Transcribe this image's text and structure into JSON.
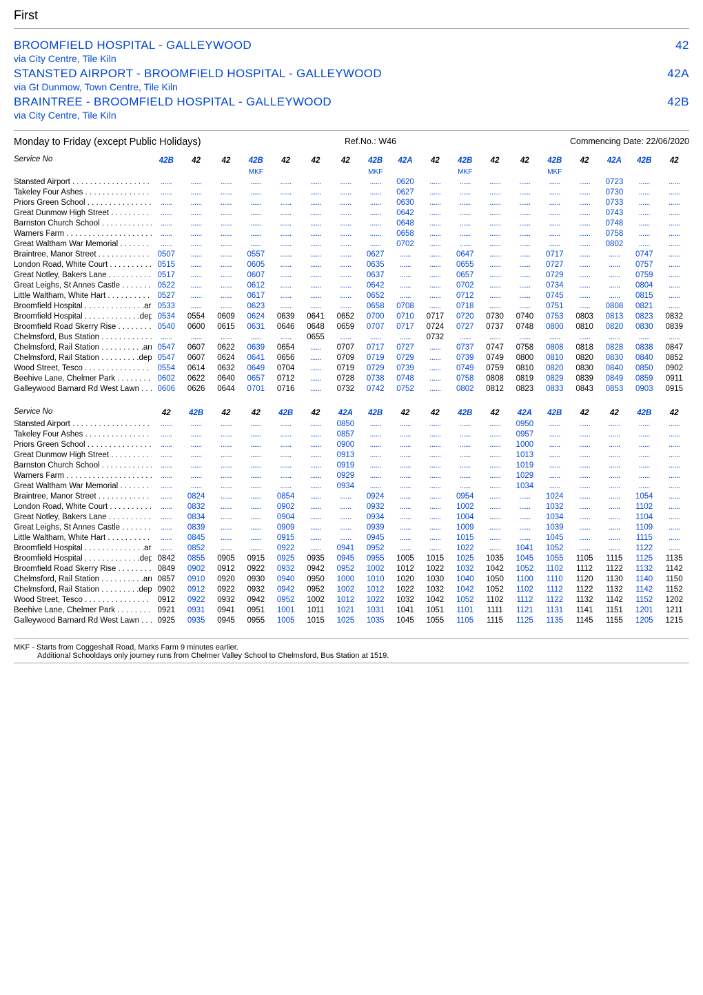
{
  "operator": "First",
  "routes": [
    {
      "title": "BROOMFIELD HOSPITAL - GALLEYWOOD",
      "num": "42",
      "via": "via City Centre, Tile Kiln"
    },
    {
      "title": "STANSTED AIRPORT - BROOMFIELD HOSPITAL - GALLEYWOOD",
      "num": "42A",
      "via": "via Gt Dunmow, Town Centre, Tile Kiln"
    },
    {
      "title": "BRAINTREE - BROOMFIELD HOSPITAL - GALLEYWOOD",
      "num": "42B",
      "via": "via City Centre, Tile Kiln"
    }
  ],
  "days_label": "Monday to Friday (except Public Holidays)",
  "ref": "Ref.No.: W46",
  "commencing": "Commencing Date: 22/06/2020",
  "table1": {
    "headers": [
      "42B",
      "42",
      "42",
      "42B",
      "42",
      "42",
      "42",
      "42B",
      "42A",
      "42",
      "42B",
      "42",
      "42",
      "42B",
      "42",
      "42A",
      "42B",
      "42"
    ],
    "mkf_cols": [
      3,
      7,
      10,
      13
    ],
    "stops": [
      "Stansted Airport . . . . . . . . . . . . . . . . . . .",
      "Takeley Four Ashes  . . . . . . . . . . . . . . .",
      "Priors Green School . . . . . . . . . . . . . . . .",
      "Great Dunmow High Street . . . . . . . . . .",
      "Barnston Church School . . . . . . . . . . . .",
      "Warners Farm   . . . . . . . . . . . . . . . . . . . .",
      "Great Waltham War Memorial  . . . . . . .",
      "Braintree, Manor Street  . . . . . . . . . . . .",
      "London Road, White Court . . . . . . . . . .",
      "Great Notley, Bakers Lane  . . . . . . . . . .",
      "Great Leighs, St Annes Castle . . . . . . .",
      "Little Waltham, White Hart . . . . . . . . . .",
      "Broomfield Hospital . . . . . . . . . . . . . .arr",
      "Broomfield Hospital . . . . . . . . . . . . .dep",
      "Broomfield Road Skerry Rise . . . . . . . .",
      "Chelmsford, Bus Station . . . . . . . . . . . .",
      "Chelmsford, Rail Station . . . . . . . . . .arr",
      "Chelmsford, Rail Station . . . . . . . . .dep",
      "Wood Street, Tesco  . . . . . . . . . . . . . . . .",
      "Beehive Lane, Chelmer Park  . . . . . . . .",
      "Galleywood Barnard Rd West Lawn . . ."
    ],
    "rows": [
      [
        "",
        "",
        "",
        "",
        "",
        "",
        "",
        "",
        "0620",
        "",
        "",
        "",
        "",
        "",
        "",
        "0723",
        "",
        ""
      ],
      [
        "",
        "",
        "",
        "",
        "",
        "",
        "",
        "",
        "0627",
        "",
        "",
        "",
        "",
        "",
        "",
        "0730",
        "",
        ""
      ],
      [
        "",
        "",
        "",
        "",
        "",
        "",
        "",
        "",
        "0630",
        "",
        "",
        "",
        "",
        "",
        "",
        "0733",
        "",
        ""
      ],
      [
        "",
        "",
        "",
        "",
        "",
        "",
        "",
        "",
        "0642",
        "",
        "",
        "",
        "",
        "",
        "",
        "0743",
        "",
        ""
      ],
      [
        "",
        "",
        "",
        "",
        "",
        "",
        "",
        "",
        "0648",
        "",
        "",
        "",
        "",
        "",
        "",
        "0748",
        "",
        ""
      ],
      [
        "",
        "",
        "",
        "",
        "",
        "",
        "",
        "",
        "0658",
        "",
        "",
        "",
        "",
        "",
        "",
        "0758",
        "",
        ""
      ],
      [
        "",
        "",
        "",
        "",
        "",
        "",
        "",
        "",
        "0702",
        "",
        "",
        "",
        "",
        "",
        "",
        "0802",
        "",
        ""
      ],
      [
        "0507",
        "",
        "",
        "0557",
        "",
        "",
        "",
        "0627",
        "",
        "",
        "0647",
        "",
        "",
        "0717",
        "",
        "",
        "0747",
        ""
      ],
      [
        "0515",
        "",
        "",
        "0605",
        "",
        "",
        "",
        "0635",
        "",
        "",
        "0655",
        "",
        "",
        "0727",
        "",
        "",
        "0757",
        ""
      ],
      [
        "0517",
        "",
        "",
        "0607",
        "",
        "",
        "",
        "0637",
        "",
        "",
        "0657",
        "",
        "",
        "0729",
        "",
        "",
        "0759",
        ""
      ],
      [
        "0522",
        "",
        "",
        "0612",
        "",
        "",
        "",
        "0642",
        "",
        "",
        "0702",
        "",
        "",
        "0734",
        "",
        "",
        "0804",
        ""
      ],
      [
        "0527",
        "",
        "",
        "0617",
        "",
        "",
        "",
        "0652",
        "",
        "",
        "0712",
        "",
        "",
        "0745",
        "",
        "",
        "0815",
        ""
      ],
      [
        "0533",
        "",
        "",
        "0623",
        "",
        "",
        "",
        "0658",
        "0708",
        "",
        "0718",
        "",
        "",
        "0751",
        "",
        "0808",
        "0821",
        ""
      ],
      [
        "0534",
        "0554",
        "0609",
        "0624",
        "0639",
        "0641",
        "0652",
        "0700",
        "0710",
        "0717",
        "0720",
        "0730",
        "0740",
        "0753",
        "0803",
        "0813",
        "0823",
        "0832"
      ],
      [
        "0540",
        "0600",
        "0615",
        "0631",
        "0646",
        "0648",
        "0659",
        "0707",
        "0717",
        "0724",
        "0727",
        "0737",
        "0748",
        "0800",
        "0810",
        "0820",
        "0830",
        "0839"
      ],
      [
        "",
        "",
        "",
        "",
        "",
        "0655",
        "",
        "",
        "",
        "0732",
        "",
        "",
        "",
        "",
        "",
        "",
        "",
        ""
      ],
      [
        "0547",
        "0607",
        "0622",
        "0639",
        "0654",
        "",
        "0707",
        "0717",
        "0727",
        "",
        "0737",
        "0747",
        "0758",
        "0808",
        "0818",
        "0828",
        "0838",
        "0847"
      ],
      [
        "0547",
        "0607",
        "0624",
        "0641",
        "0656",
        "",
        "0709",
        "0719",
        "0729",
        "",
        "0739",
        "0749",
        "0800",
        "0810",
        "0820",
        "0830",
        "0840",
        "0852"
      ],
      [
        "0554",
        "0614",
        "0632",
        "0649",
        "0704",
        "",
        "0719",
        "0729",
        "0739",
        "",
        "0749",
        "0759",
        "0810",
        "0820",
        "0830",
        "0840",
        "0850",
        "0902"
      ],
      [
        "0602",
        "0622",
        "0640",
        "0657",
        "0712",
        "",
        "0728",
        "0738",
        "0748",
        "",
        "0758",
        "0808",
        "0819",
        "0829",
        "0839",
        "0849",
        "0859",
        "0911"
      ],
      [
        "0606",
        "0626",
        "0644",
        "0701",
        "0716",
        "",
        "0732",
        "0742",
        "0752",
        "",
        "0802",
        "0812",
        "0823",
        "0833",
        "0843",
        "0853",
        "0903",
        "0915"
      ]
    ]
  },
  "table2": {
    "headers": [
      "42",
      "42B",
      "42",
      "42",
      "42B",
      "42",
      "42A",
      "42B",
      "42",
      "42",
      "42B",
      "42",
      "42A",
      "42B",
      "42",
      "42",
      "42B",
      "42"
    ],
    "mkf_cols": [],
    "stops": [
      "Stansted Airport  . . . . . . . . . . . . . . . . . .",
      "Takeley Four Ashes   . . . . . . . . . . . . . . .",
      "Priors Green School . . . . . . . . . . . . . . . .",
      "Great Dunmow High Street . . . . . . . . . .",
      "Barnston Church School . . . . . . . . . . . .",
      "Warners Farm   . . . . . . . . . . . . . . . . . . . .",
      "Great Waltham War Memorial  . . . . . . .",
      "Braintree, Manor Street  . . . . . . . . . . . .",
      "London Road, White Court . . . . . . . . . .",
      "Great Notley, Bakers Lane  . . . . . . . . . .",
      "Great Leighs, St Annes Castle . . . . . . .",
      "Little Waltham, White Hart . . . . . . . . . .",
      "Broomfield Hospital . . . . . . . . . . . . . .arr",
      "Broomfield Hospital . . . . . . . . . . . . .dep",
      "Broomfield Road Skerry Rise . . . . . . . .",
      "Chelmsford, Rail Station . . . . . . . . . .arr",
      "Chelmsford, Rail Station . . . . . . . . .dep",
      "Wood Street, Tesco  . . . . . . . . . . . . . . . .",
      "Beehive Lane, Chelmer Park  . . . . . . . .",
      "Galleywood Barnard Rd West Lawn . . ."
    ],
    "rows": [
      [
        "",
        "",
        "",
        "",
        "",
        "",
        "0850",
        "",
        "",
        "",
        "",
        "",
        "0950",
        "",
        "",
        "",
        "",
        ""
      ],
      [
        "",
        "",
        "",
        "",
        "",
        "",
        "0857",
        "",
        "",
        "",
        "",
        "",
        "0957",
        "",
        "",
        "",
        "",
        ""
      ],
      [
        "",
        "",
        "",
        "",
        "",
        "",
        "0900",
        "",
        "",
        "",
        "",
        "",
        "1000",
        "",
        "",
        "",
        "",
        ""
      ],
      [
        "",
        "",
        "",
        "",
        "",
        "",
        "0913",
        "",
        "",
        "",
        "",
        "",
        "1013",
        "",
        "",
        "",
        "",
        ""
      ],
      [
        "",
        "",
        "",
        "",
        "",
        "",
        "0919",
        "",
        "",
        "",
        "",
        "",
        "1019",
        "",
        "",
        "",
        "",
        ""
      ],
      [
        "",
        "",
        "",
        "",
        "",
        "",
        "0929",
        "",
        "",
        "",
        "",
        "",
        "1029",
        "",
        "",
        "",
        "",
        ""
      ],
      [
        "",
        "",
        "",
        "",
        "",
        "",
        "0934",
        "",
        "",
        "",
        "",
        "",
        "1034",
        "",
        "",
        "",
        "",
        ""
      ],
      [
        "",
        "0824",
        "",
        "",
        "0854",
        "",
        "",
        "0924",
        "",
        "",
        "0954",
        "",
        "",
        "1024",
        "",
        "",
        "1054",
        ""
      ],
      [
        "",
        "0832",
        "",
        "",
        "0902",
        "",
        "",
        "0932",
        "",
        "",
        "1002",
        "",
        "",
        "1032",
        "",
        "",
        "1102",
        ""
      ],
      [
        "",
        "0834",
        "",
        "",
        "0904",
        "",
        "",
        "0934",
        "",
        "",
        "1004",
        "",
        "",
        "1034",
        "",
        "",
        "1104",
        ""
      ],
      [
        "",
        "0839",
        "",
        "",
        "0909",
        "",
        "",
        "0939",
        "",
        "",
        "1009",
        "",
        "",
        "1039",
        "",
        "",
        "1109",
        ""
      ],
      [
        "",
        "0845",
        "",
        "",
        "0915",
        "",
        "",
        "0945",
        "",
        "",
        "1015",
        "",
        "",
        "1045",
        "",
        "",
        "1115",
        ""
      ],
      [
        "",
        "0852",
        "",
        "",
        "0922",
        "",
        "0941",
        "0952",
        "",
        "",
        "1022",
        "",
        "1041",
        "1052",
        "",
        "",
        "1122",
        ""
      ],
      [
        "0842",
        "0855",
        "0905",
        "0915",
        "0925",
        "0935",
        "0945",
        "0955",
        "1005",
        "1015",
        "1025",
        "1035",
        "1045",
        "1055",
        "1105",
        "1115",
        "1125",
        "1135"
      ],
      [
        "0849",
        "0902",
        "0912",
        "0922",
        "0932",
        "0942",
        "0952",
        "1002",
        "1012",
        "1022",
        "1032",
        "1042",
        "1052",
        "1102",
        "1112",
        "1122",
        "1132",
        "1142"
      ],
      [
        "0857",
        "0910",
        "0920",
        "0930",
        "0940",
        "0950",
        "1000",
        "1010",
        "1020",
        "1030",
        "1040",
        "1050",
        "1100",
        "1110",
        "1120",
        "1130",
        "1140",
        "1150"
      ],
      [
        "0902",
        "0912",
        "0922",
        "0932",
        "0942",
        "0952",
        "1002",
        "1012",
        "1022",
        "1032",
        "1042",
        "1052",
        "1102",
        "1112",
        "1122",
        "1132",
        "1142",
        "1152"
      ],
      [
        "0912",
        "0922",
        "0932",
        "0942",
        "0952",
        "1002",
        "1012",
        "1022",
        "1032",
        "1042",
        "1052",
        "1102",
        "1112",
        "1122",
        "1132",
        "1142",
        "1152",
        "1202"
      ],
      [
        "0921",
        "0931",
        "0941",
        "0951",
        "1001",
        "1011",
        "1021",
        "1031",
        "1041",
        "1051",
        "1101",
        "1111",
        "1121",
        "1131",
        "1141",
        "1151",
        "1201",
        "1211"
      ],
      [
        "0925",
        "0935",
        "0945",
        "0955",
        "1005",
        "1015",
        "1025",
        "1035",
        "1045",
        "1055",
        "1105",
        "1115",
        "1125",
        "1135",
        "1145",
        "1155",
        "1205",
        "1215"
      ]
    ]
  },
  "footnotes": [
    "MKF   - Starts from Coggeshall Road, Marks Farm 9 minutes earlier.",
    "Additional Schooldays only journey runs from Chelmer Valley School to Chelmsford, Bus Station at 1519."
  ]
}
